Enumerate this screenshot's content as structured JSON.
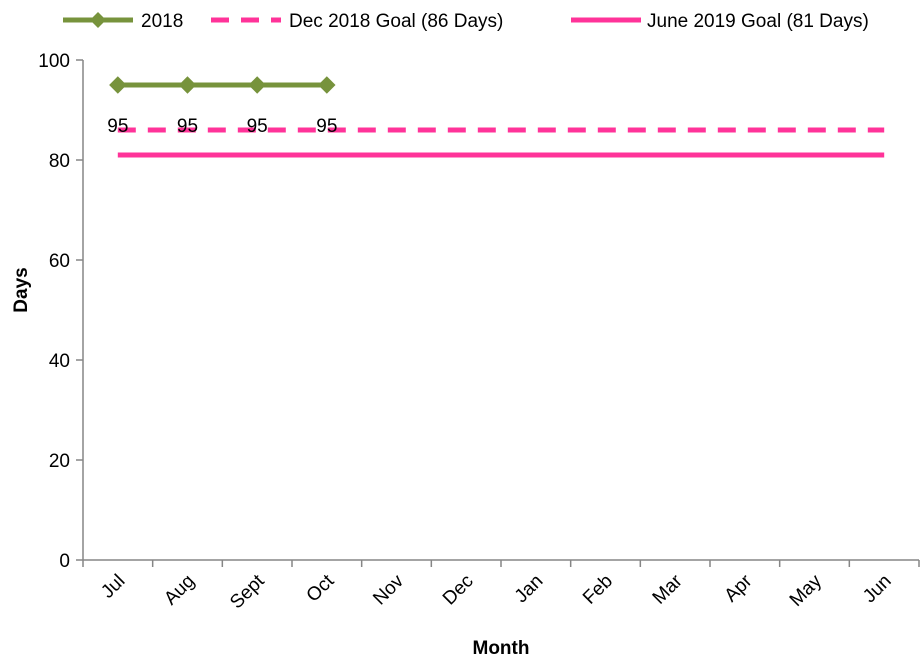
{
  "chart_data": {
    "type": "line",
    "title": "",
    "xlabel": "Month",
    "ylabel": "Days",
    "categories": [
      "Jul",
      "Aug",
      "Sept",
      "Oct",
      "Nov",
      "Dec",
      "Jan",
      "Feb",
      "Mar",
      "Apr",
      "May",
      "Jun"
    ],
    "ylim": [
      0,
      100
    ],
    "yticks": [
      0,
      20,
      40,
      60,
      80,
      100
    ],
    "grid": false,
    "legend_position": "top",
    "series": [
      {
        "name": "2018",
        "values": [
          95,
          95,
          95,
          95,
          null,
          null,
          null,
          null,
          null,
          null,
          null,
          null
        ],
        "color": "#77933c",
        "line_style": "solid",
        "marker": "diamond",
        "data_labels": [
          "95",
          "95",
          "95",
          "95"
        ]
      },
      {
        "name": "Dec 2018 Goal (86 Days)",
        "values": [
          86,
          86,
          86,
          86,
          86,
          86,
          86,
          86,
          86,
          86,
          86,
          86
        ],
        "color": "#ff3399",
        "line_style": "dashed",
        "marker": "none"
      },
      {
        "name": "June 2019 Goal (81 Days)",
        "values": [
          81,
          81,
          81,
          81,
          81,
          81,
          81,
          81,
          81,
          81,
          81,
          81
        ],
        "color": "#ff3399",
        "line_style": "solid",
        "marker": "none"
      }
    ]
  }
}
